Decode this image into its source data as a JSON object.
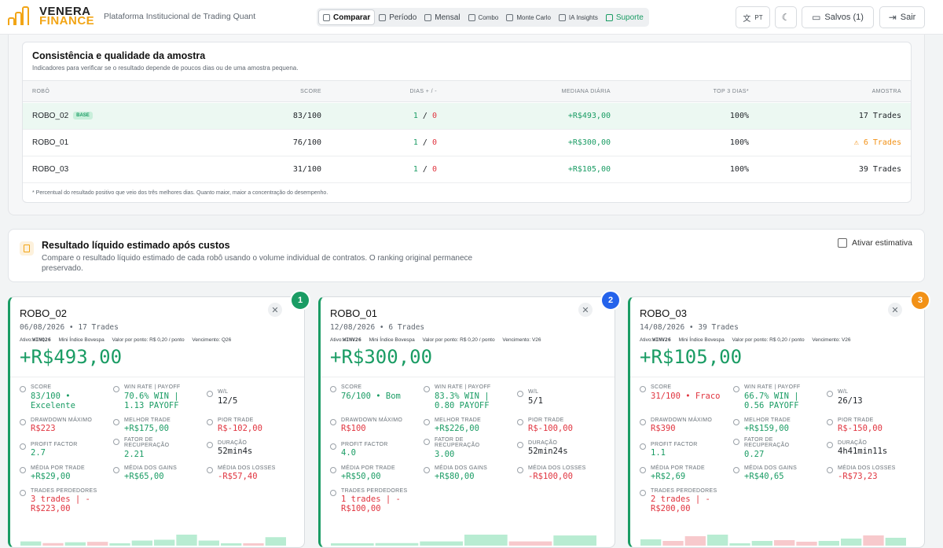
{
  "brand": {
    "line1": "VENERA",
    "line2": "FINANCE",
    "tagline": "Plataforma Institucional de Trading Quant"
  },
  "nav": {
    "tabs": [
      {
        "label": "Comparar",
        "icon": "bar-chart-icon"
      },
      {
        "label": "Período",
        "icon": "calendar-icon"
      },
      {
        "label": "Mensal",
        "icon": "calendar-grid-icon"
      },
      {
        "label": "Combo",
        "icon": "layers-icon"
      },
      {
        "label": "Monte Carlo",
        "icon": "dice-icon"
      },
      {
        "label": "IA Insights",
        "icon": "robot-icon"
      },
      {
        "label": "Suporte",
        "icon": "chat-icon"
      }
    ],
    "lang": "PT",
    "saved": "Salvos (1)",
    "logout": "Sair"
  },
  "consistency": {
    "title": "Consistência e qualidade da amostra",
    "subtitle": "Indicadores para verificar se o resultado depende de poucos dias ou de uma amostra pequena.",
    "headers": [
      "ROBÔ",
      "SCORE",
      "DIAS + / -",
      "MEDIANA DIÁRIA",
      "TOP 3 DIAS*",
      "AMOSTRA"
    ],
    "base_badge": "BASE",
    "rows": [
      {
        "robot": "ROBO_02",
        "score": "83/100",
        "days_pos": "1",
        "sep": "/",
        "days_neg": "0",
        "median": "+R$493,00",
        "top3": "100%",
        "sample": "17 Trades"
      },
      {
        "robot": "ROBO_01",
        "score": "76/100",
        "days_pos": "1",
        "sep": "/",
        "days_neg": "0",
        "median": "+R$300,00",
        "top3": "100%",
        "sample": "6 Trades"
      },
      {
        "robot": "ROBO_03",
        "score": "31/100",
        "days_pos": "1",
        "sep": "/",
        "days_neg": "0",
        "median": "+R$105,00",
        "top3": "100%",
        "sample": "39 Trades"
      }
    ],
    "footnote": "* Percentual do resultado positivo que veio dos três melhores dias. Quanto maior, maior a concentração do desempenho."
  },
  "net": {
    "title": "Resultado líquido estimado após custos",
    "description": "Compare o resultado líquido estimado de cada robô usando o volume individual de contratos. O ranking original permanece preservado.",
    "toggle_label": "Ativar estimativa"
  },
  "robots": [
    {
      "rank": "1",
      "rank_color": "#1a9c64",
      "name": "ROBO_02",
      "date": "06/08/2026",
      "trades": "17 Trades",
      "asset_label": "Ativo:",
      "asset": "WINQ26",
      "index": "Mini Índice Bovespa",
      "point_value": "Valor por ponto: R$ 0,20 / ponto",
      "expiry": "Vencimento: Q26",
      "result": "+R$493,00",
      "score_label": "SCORE",
      "score": "83/100 • Excelente",
      "winrate_label": "WIN RATE | PAYOFF",
      "winrate": "70.6% WIN | 1.13 PAYOFF",
      "wl_label": "W/L",
      "wl": "12/5",
      "dd_label": "DRAWDOWN MÁXIMO",
      "dd": "R$223",
      "best_label": "MELHOR TRADE",
      "best": "+R$175,00",
      "worst_label": "PIOR TRADE",
      "worst": "R$-102,00",
      "pf_label": "PROFIT FACTOR",
      "pf": "2.7",
      "rec_label": "FATOR DE RECUPERAÇÃO",
      "rec": "2.21",
      "dur_label": "DURAÇÃO",
      "dur": "52min4s",
      "avg_label": "MÉDIA POR TRADE",
      "avg": "+R$29,00",
      "gains_label": "MÉDIA DOS GAINS",
      "gains": "+R$65,00",
      "losses_label": "MÉDIA DOS LOSSES",
      "losses": "-R$57,40",
      "losers_label": "TRADES PERDEDORES",
      "losers": "3 trades | - R$223,00",
      "spark": [
        10,
        -6,
        8,
        -9,
        4,
        12,
        14,
        26,
        12,
        5,
        -3,
        20
      ]
    },
    {
      "rank": "2",
      "rank_color": "#2563eb",
      "name": "ROBO_01",
      "date": "12/08/2026",
      "trades": "6 Trades",
      "asset_label": "Ativo:",
      "asset": "WINV26",
      "index": "Mini Índice Bovespa",
      "point_value": "Valor por ponto: R$ 0,20 / ponto",
      "expiry": "Vencimento: V26",
      "result": "+R$300,00",
      "score_label": "SCORE",
      "score": "76/100 • Bom",
      "winrate_label": "WIN RATE | PAYOFF",
      "winrate": "83.3% WIN | 0.80 PAYOFF",
      "wl_label": "W/L",
      "wl": "5/1",
      "dd_label": "DRAWDOWN MÁXIMO",
      "dd": "R$100",
      "best_label": "MELHOR TRADE",
      "best": "+R$226,00",
      "worst_label": "PIOR TRADE",
      "worst": "R$-100,00",
      "pf_label": "PROFIT FACTOR",
      "pf": "4.0",
      "rec_label": "FATOR DE RECUPERAÇÃO",
      "rec": "3.00",
      "dur_label": "DURAÇÃO",
      "dur": "52min24s",
      "avg_label": "MÉDIA POR TRADE",
      "avg": "+R$50,00",
      "gains_label": "MÉDIA DOS GAINS",
      "gains": "+R$80,00",
      "losses_label": "MÉDIA DOS LOSSES",
      "losses": "-R$100,00",
      "losers_label": "TRADES PERDEDORES",
      "losers": "1 trades | - R$100,00",
      "spark": [
        4,
        6,
        10,
        26,
        -10,
        24
      ]
    },
    {
      "rank": "3",
      "rank_color": "#f29116",
      "name": "ROBO_03",
      "date": "14/08/2026",
      "trades": "39 Trades",
      "asset_label": "Ativo:",
      "asset": "WINV26",
      "index": "Mini Índice Bovespa",
      "point_value": "Valor por ponto: R$ 0,20 / ponto",
      "expiry": "Vencimento: V26",
      "result": "+R$105,00",
      "score_label": "SCORE",
      "score": "31/100 • Fraco",
      "winrate_label": "WIN RATE | PAYOFF",
      "winrate": "66.7% WIN | 0.56 PAYOFF",
      "wl_label": "W/L",
      "wl": "26/13",
      "dd_label": "DRAWDOWN MÁXIMO",
      "dd": "R$390",
      "best_label": "MELHOR TRADE",
      "best": "+R$159,00",
      "worst_label": "PIOR TRADE",
      "worst": "R$-150,00",
      "pf_label": "PROFIT FACTOR",
      "pf": "1.1",
      "rec_label": "FATOR DE RECUPERAÇÃO",
      "rec": "0.27",
      "dur_label": "DURAÇÃO",
      "dur": "4h41min11s",
      "avg_label": "MÉDIA POR TRADE",
      "avg": "+R$2,69",
      "gains_label": "MÉDIA DOS GAINS",
      "gains": "+R$40,65",
      "losses_label": "MÉDIA DOS LOSSES",
      "losses": "-R$73,23",
      "losers_label": "TRADES PERDEDORES",
      "losers": "2 trades | - R$200,00",
      "spark": [
        8,
        -6,
        -12,
        14,
        3,
        6,
        -7,
        -5,
        6,
        9,
        -13,
        10
      ]
    }
  ]
}
